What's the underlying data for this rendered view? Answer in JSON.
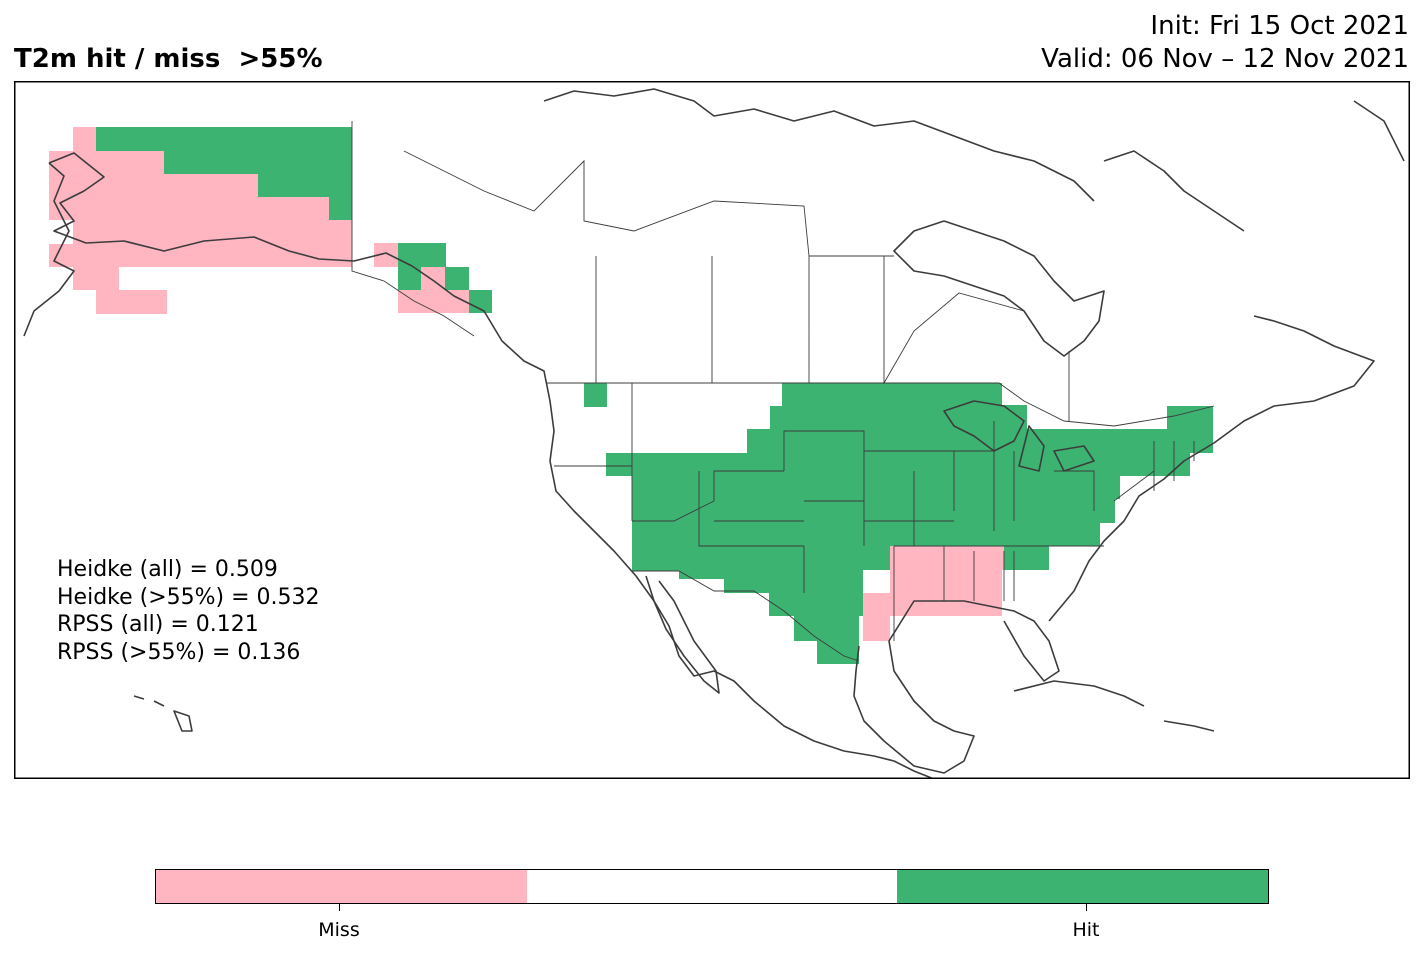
{
  "title": "T2m hit / miss  >55%",
  "init": "Init: Fri 15 Oct 2021",
  "valid": "Valid: 06 Nov – 12 Nov 2021",
  "scores": [
    "Heidke (all) = 0.509",
    "Heidke (>55%) = 0.532",
    "RPSS (all) = 0.121",
    "RPSS (>55%) = 0.136"
  ],
  "legend": {
    "categories": [
      {
        "label": "Miss",
        "color": "#ffb6c1"
      },
      {
        "label": "",
        "color": "#ffffff"
      },
      {
        "label": "Hit",
        "color": "#3cb371"
      }
    ]
  },
  "colors": {
    "hit": "#3cb371",
    "miss": "#ffb6c1",
    "outline": "#3c3c3c"
  }
}
